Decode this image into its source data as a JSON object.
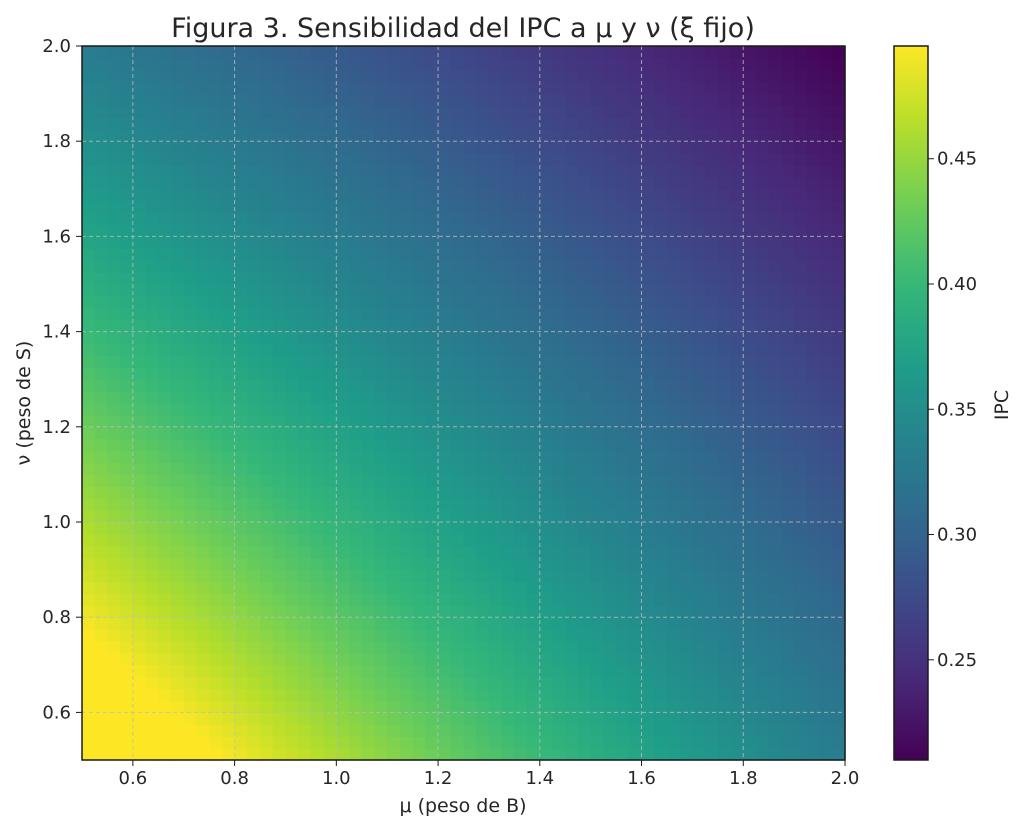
{
  "chart_data": {
    "type": "heatmap",
    "title": "Figura 3. Sensibilidad del IPC a μ y ν (ξ fijo)",
    "xlabel": "μ (peso de B)",
    "ylabel": "ν (peso de S)",
    "colorbar_label": "IPC",
    "xlim": [
      0.5,
      2.0
    ],
    "ylim": [
      0.5,
      2.0
    ],
    "x_ticks": [
      "0.6",
      "0.8",
      "1.0",
      "1.2",
      "1.4",
      "1.6",
      "1.8",
      "2.0"
    ],
    "y_ticks": [
      "0.6",
      "0.8",
      "1.0",
      "1.2",
      "1.4",
      "1.6",
      "1.8",
      "2.0"
    ],
    "colorbar_ticks": [
      "0.25",
      "0.30",
      "0.35",
      "0.40",
      "0.45"
    ],
    "value_range": [
      0.21,
      0.495
    ],
    "colormap": "viridis",
    "grid": true,
    "corner_values": {
      "mu_0.5_nu_0.5": 0.495,
      "mu_2.0_nu_0.5": 0.33,
      "mu_0.5_nu_2.0": 0.33,
      "mu_2.0_nu_2.0": 0.21
    }
  }
}
